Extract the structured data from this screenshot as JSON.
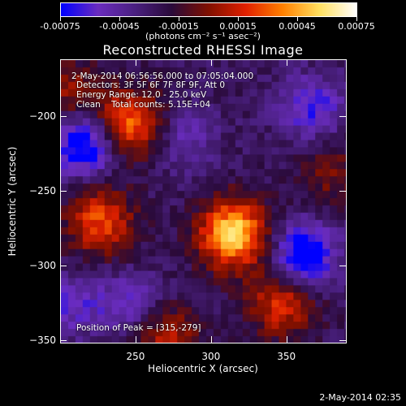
{
  "chart_data": {
    "type": "heatmap",
    "title": "Reconstructed RHESSI Image",
    "xlabel": "Heliocentric X (arcsec)",
    "ylabel": "Heliocentric Y (arcsec)",
    "xlim": [
      200,
      390
    ],
    "ylim": [
      -352,
      -162
    ],
    "x_ticks": [
      250,
      300,
      350
    ],
    "y_ticks": [
      -200,
      -250,
      -300,
      -350
    ],
    "colorbar": {
      "range": [
        -0.00075,
        0.00075
      ],
      "ticks": [
        "-0.00075",
        "-0.00045",
        "-0.00015",
        "0.00015",
        "0.00045",
        "0.00075"
      ],
      "units_label": "(photons cm⁻² s⁻¹ asec⁻²)",
      "colormap": [
        "#0000ff",
        "#6a2cbf",
        "#4a2080",
        "#2a0a3a",
        "#801000",
        "#e02000",
        "#ff8000",
        "#ffe060",
        "#ffffff"
      ]
    },
    "annotations": {
      "time_range": "2-May-2014 06:56:56.000 to 07:05:04.000",
      "detectors": "Detectors: 3F 5F 6F 7F 8F 9F, Att 0",
      "energy_range": "Energy Range: 12.0 - 25.0 keV",
      "clean_counts": "Clean    Total counts: 5.15E+04",
      "peak": "Position of Peak = [315,-279]"
    },
    "sources": [
      {
        "x": 315,
        "y": -279,
        "intensity": 0.00075
      },
      {
        "x": 246,
        "y": -205,
        "intensity": 0.00052
      },
      {
        "x": 226,
        "y": -271,
        "intensity": 0.00042
      },
      {
        "x": 347,
        "y": -326,
        "intensity": 0.00035
      },
      {
        "x": 271,
        "y": -350,
        "intensity": 0.00028
      },
      {
        "x": 379,
        "y": -238,
        "intensity": 0.00012
      },
      {
        "x": 207,
        "y": -185,
        "intensity": 0.0002
      }
    ],
    "negatives": [
      {
        "x": 216,
        "y": -218,
        "intensity": -0.00075
      },
      {
        "x": 362,
        "y": -293,
        "intensity": -0.0007
      },
      {
        "x": 367,
        "y": -194,
        "intensity": -0.0005
      },
      {
        "x": 281,
        "y": -214,
        "intensity": -0.00035
      },
      {
        "x": 246,
        "y": -326,
        "intensity": -0.0004
      },
      {
        "x": 208,
        "y": -326,
        "intensity": -0.0004
      }
    ]
  },
  "timestamp": "2-May-2014 02:35"
}
